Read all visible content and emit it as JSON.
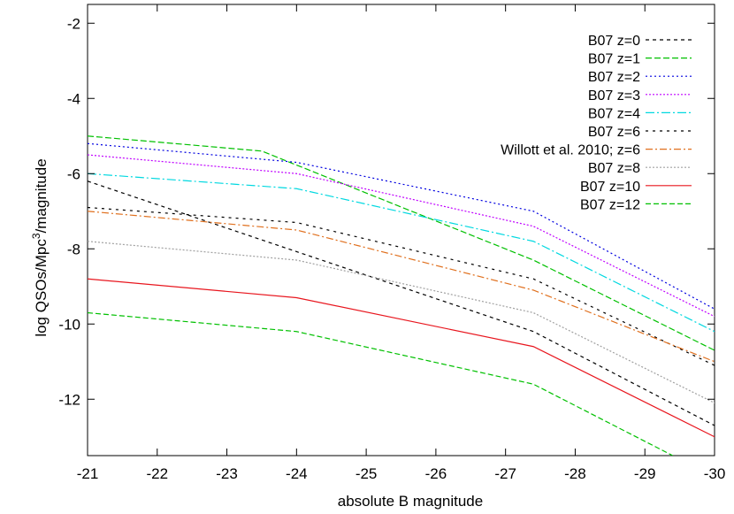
{
  "chart_data": {
    "type": "line",
    "xlabel": "absolute B magnitude",
    "ylabel": "log QSOs/Mpc",
    "ylabel_sup": "3",
    "ylabel_tail": "/magnitude",
    "xlim": [
      -21,
      -30
    ],
    "ylim": [
      -13.5,
      -1.5
    ],
    "x_ticks": [
      -21,
      -22,
      -23,
      -24,
      -25,
      -26,
      -27,
      -28,
      -29,
      -30
    ],
    "y_ticks": [
      -12,
      -10,
      -8,
      -6,
      -4,
      -2
    ],
    "grid": false,
    "legend_position": "top-right",
    "series": [
      {
        "name": "B07 z=0",
        "color": "#000000",
        "dash": "4,4",
        "x": [
          -21,
          -27.4,
          -30
        ],
        "y": [
          -6.2,
          -10.2,
          -12.7
        ]
      },
      {
        "name": "B07 z=1",
        "color": "#00c000",
        "dash": "7,3",
        "x": [
          -21,
          -23.5,
          -27.4,
          -30
        ],
        "y": [
          -5.0,
          -5.4,
          -8.3,
          -10.7
        ]
      },
      {
        "name": "B07 z=2",
        "color": "#0000e0",
        "dash": "2,3",
        "x": [
          -21,
          -24.0,
          -27.4,
          -30
        ],
        "y": [
          -5.2,
          -5.7,
          -7.0,
          -9.6
        ]
      },
      {
        "name": "B07 z=3",
        "color": "#c000ff",
        "dash": "2,2",
        "x": [
          -21,
          -24.0,
          -27.4,
          -30
        ],
        "y": [
          -5.5,
          -6.0,
          -7.4,
          -9.8
        ]
      },
      {
        "name": "B07 z=4",
        "color": "#00d8e0",
        "dash": "10,3,2,3",
        "x": [
          -21,
          -24.0,
          -27.4,
          -30
        ],
        "y": [
          -6.0,
          -6.4,
          -7.8,
          -10.2
        ]
      },
      {
        "name": "B07 z=6",
        "color": "#000000",
        "dash": "3,5",
        "x": [
          -21,
          -24.0,
          -27.4,
          -30
        ],
        "y": [
          -6.9,
          -7.3,
          -8.8,
          -11.1
        ]
      },
      {
        "name": "Willott et al. 2010; z=6",
        "color": "#e0701e",
        "dash": "8,3,2,3",
        "x": [
          -21,
          -24.0,
          -27.4,
          -30
        ],
        "y": [
          -7.0,
          -7.5,
          -9.1,
          -11.0
        ]
      },
      {
        "name": "B07 z=8",
        "color": "#a0a0a0",
        "dash": "2,2",
        "x": [
          -21,
          -24.0,
          -27.4,
          -30
        ],
        "y": [
          -7.8,
          -8.3,
          -9.7,
          -12.1
        ]
      },
      {
        "name": "B07 z=10",
        "color": "#e8161e",
        "dash": "",
        "x": [
          -21,
          -24.0,
          -27.4,
          -30
        ],
        "y": [
          -8.8,
          -9.3,
          -10.6,
          -13.0
        ]
      },
      {
        "name": "B07 z=12",
        "color": "#00c000",
        "dash": "6,3",
        "x": [
          -21,
          -24.0,
          -27.4,
          -29.4
        ],
        "y": [
          -9.7,
          -10.2,
          -11.6,
          -13.5
        ]
      }
    ]
  }
}
